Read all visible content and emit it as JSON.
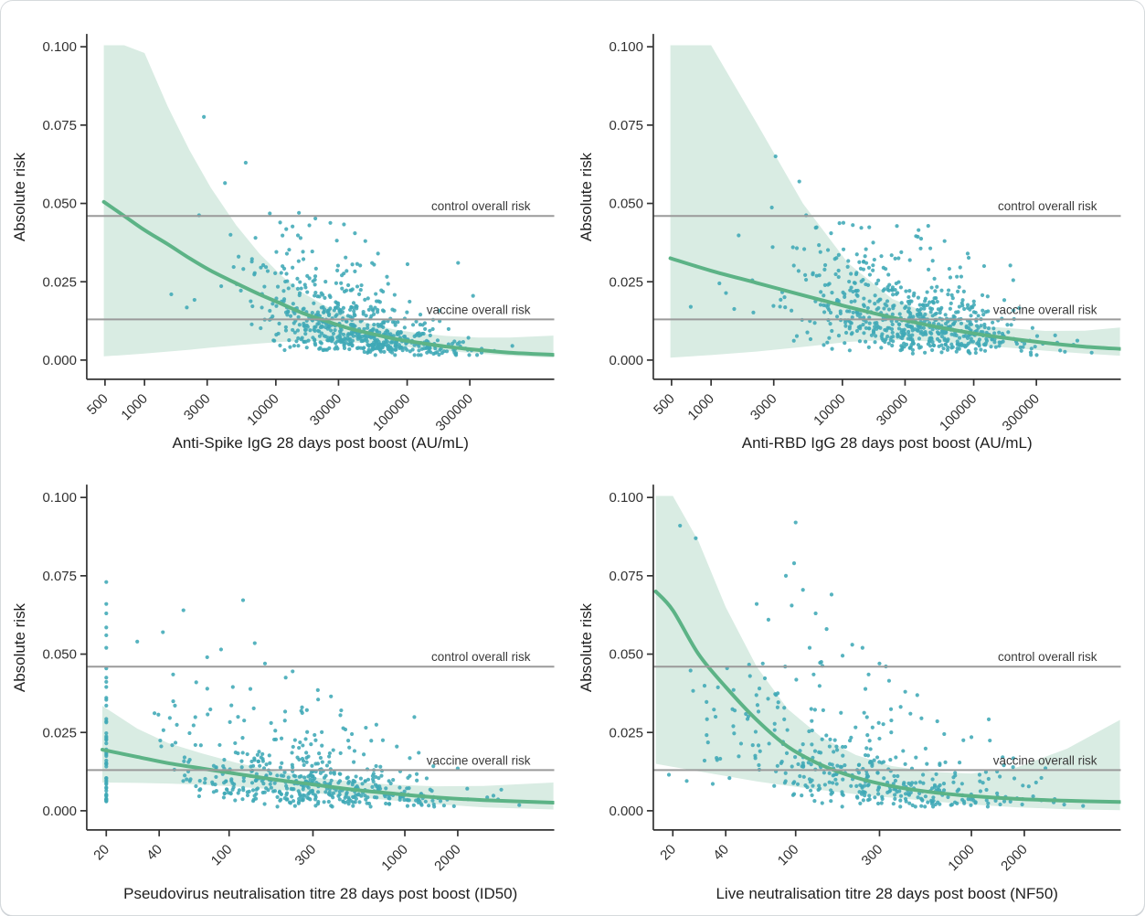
{
  "figure": {
    "ylabel": "Absolute risk",
    "y_ticks": [
      {
        "v": 0.0,
        "label": "0.000"
      },
      {
        "v": 0.025,
        "label": "0.025"
      },
      {
        "v": 0.05,
        "label": "0.050"
      },
      {
        "v": 0.075,
        "label": "0.075"
      },
      {
        "v": 0.1,
        "label": "0.100"
      }
    ],
    "ref_lines": {
      "control": {
        "value": 0.046,
        "label": "control overall risk"
      },
      "vaccine": {
        "value": 0.013,
        "label": "vaccine overall risk"
      }
    },
    "colors": {
      "point": "#3fa8b6",
      "trend": "#5cb386",
      "band": "#d9ece3",
      "ref_line": "#9a9a9a",
      "axis": "#333333",
      "text": "#303030"
    },
    "point_radius": 2.1
  },
  "chart_data": [
    {
      "type": "scatter",
      "xlabel": "Anti-Spike IgG 28 days post boost (AU/mL)",
      "ylabel": "Absolute risk",
      "x_scale": "log10",
      "x_domain_log10": [
        2.56,
        6.12
      ],
      "ylim": [
        0,
        0.1
      ],
      "x_ticks": [
        {
          "v": 500,
          "label": "500"
        },
        {
          "v": 1000,
          "label": "1000"
        },
        {
          "v": 3000,
          "label": "3000"
        },
        {
          "v": 10000,
          "label": "10000"
        },
        {
          "v": 30000,
          "label": "30000"
        },
        {
          "v": 100000,
          "label": "100000"
        },
        {
          "v": 300000,
          "label": "300000"
        }
      ],
      "trend": [
        [
          490,
          0.0505
        ],
        [
          700,
          0.046
        ],
        [
          1000,
          0.0415
        ],
        [
          1500,
          0.037
        ],
        [
          2200,
          0.0325
        ],
        [
          3200,
          0.0285
        ],
        [
          5000,
          0.0245
        ],
        [
          7500,
          0.021
        ],
        [
          11000,
          0.018
        ],
        [
          16000,
          0.015
        ],
        [
          24000,
          0.0125
        ],
        [
          35000,
          0.0103
        ],
        [
          52000,
          0.0085
        ],
        [
          80000,
          0.0068
        ],
        [
          120000,
          0.0056
        ],
        [
          200000,
          0.0043
        ],
        [
          350000,
          0.0032
        ],
        [
          600000,
          0.0024
        ],
        [
          1300000,
          0.0017
        ]
      ],
      "band_upper": [
        [
          490,
          0.15
        ],
        [
          700,
          0.12
        ],
        [
          1000,
          0.098
        ],
        [
          1500,
          0.081
        ],
        [
          2200,
          0.067
        ],
        [
          3200,
          0.055
        ],
        [
          5000,
          0.043
        ],
        [
          7500,
          0.034
        ],
        [
          11000,
          0.027
        ],
        [
          16000,
          0.0215
        ],
        [
          24000,
          0.0172
        ],
        [
          35000,
          0.014
        ],
        [
          52000,
          0.0116
        ],
        [
          80000,
          0.0098
        ],
        [
          120000,
          0.0086
        ],
        [
          200000,
          0.0077
        ],
        [
          350000,
          0.0072
        ],
        [
          600000,
          0.0072
        ],
        [
          1300000,
          0.0078
        ]
      ],
      "band_lower": [
        [
          490,
          0.0012
        ],
        [
          700,
          0.0016
        ],
        [
          1000,
          0.0021
        ],
        [
          1500,
          0.0027
        ],
        [
          2200,
          0.0033
        ],
        [
          3200,
          0.004
        ],
        [
          5000,
          0.0047
        ],
        [
          7500,
          0.0053
        ],
        [
          11000,
          0.0058
        ],
        [
          16000,
          0.0061
        ],
        [
          24000,
          0.0061
        ],
        [
          35000,
          0.0058
        ],
        [
          52000,
          0.0053
        ],
        [
          80000,
          0.0046
        ],
        [
          120000,
          0.0038
        ],
        [
          200000,
          0.0029
        ],
        [
          350000,
          0.0021
        ],
        [
          600000,
          0.0014
        ],
        [
          1300000,
          0.0008
        ]
      ],
      "outliers": [
        [
          2830,
          0.0776
        ],
        [
          5900,
          0.063
        ],
        [
          4100,
          0.0565
        ],
        [
          2600,
          0.0462
        ],
        [
          9000,
          0.0468
        ],
        [
          15000,
          0.047
        ],
        [
          20000,
          0.0452
        ],
        [
          26000,
          0.0438
        ],
        [
          18000,
          0.043
        ],
        [
          12000,
          0.0418
        ],
        [
          33000,
          0.0433
        ],
        [
          40000,
          0.0405
        ],
        [
          1600,
          0.021
        ],
        [
          2100,
          0.0168
        ],
        [
          2400,
          0.0192
        ],
        [
          48000,
          0.038
        ],
        [
          60000,
          0.034
        ],
        [
          7000,
          0.039
        ],
        [
          5200,
          0.033
        ]
      ],
      "cloud": {
        "n": 640,
        "mu_log10x": 4.6,
        "sd_log10x": 0.38,
        "clip_log10x": [
          3.1,
          6.06
        ],
        "y_sigma": 0.6,
        "y_min": 0.0016,
        "y_max": 0.044,
        "seed": 11
      }
    },
    {
      "type": "scatter",
      "xlabel": "Anti-RBD IgG 28 days post boost (AU/mL)",
      "ylabel": "Absolute risk",
      "x_scale": "log10",
      "x_domain_log10": [
        2.56,
        6.12
      ],
      "ylim": [
        0,
        0.1
      ],
      "x_ticks": [
        {
          "v": 500,
          "label": "500"
        },
        {
          "v": 1000,
          "label": "1000"
        },
        {
          "v": 3000,
          "label": "3000"
        },
        {
          "v": 10000,
          "label": "10000"
        },
        {
          "v": 30000,
          "label": "30000"
        },
        {
          "v": 100000,
          "label": "100000"
        },
        {
          "v": 300000,
          "label": "300000"
        }
      ],
      "trend": [
        [
          490,
          0.0325
        ],
        [
          1000,
          0.0285
        ],
        [
          2200,
          0.0247
        ],
        [
          5000,
          0.0207
        ],
        [
          11000,
          0.017
        ],
        [
          24000,
          0.0136
        ],
        [
          52000,
          0.0106
        ],
        [
          120000,
          0.008
        ],
        [
          350000,
          0.0055
        ],
        [
          700000,
          0.0043
        ],
        [
          1300000,
          0.0036
        ]
      ],
      "band_upper": [
        [
          490,
          0.145
        ],
        [
          1000,
          0.104
        ],
        [
          2200,
          0.076
        ],
        [
          5000,
          0.05
        ],
        [
          11000,
          0.031
        ],
        [
          24000,
          0.0195
        ],
        [
          52000,
          0.014
        ],
        [
          120000,
          0.0108
        ],
        [
          350000,
          0.0093
        ],
        [
          700000,
          0.0094
        ],
        [
          1300000,
          0.0104
        ]
      ],
      "band_lower": [
        [
          490,
          0.0008
        ],
        [
          1000,
          0.0016
        ],
        [
          2200,
          0.0027
        ],
        [
          5000,
          0.0042
        ],
        [
          11000,
          0.0058
        ],
        [
          24000,
          0.0065
        ],
        [
          52000,
          0.0059
        ],
        [
          120000,
          0.0046
        ],
        [
          350000,
          0.003
        ],
        [
          700000,
          0.0021
        ],
        [
          1300000,
          0.0014
        ]
      ],
      "outliers": [
        [
          3100,
          0.065
        ],
        [
          4700,
          0.057
        ],
        [
          2900,
          0.0487
        ],
        [
          5300,
          0.0462
        ],
        [
          9500,
          0.0437
        ],
        [
          12000,
          0.0431
        ],
        [
          16000,
          0.0424
        ],
        [
          8200,
          0.0405
        ],
        [
          700,
          0.017
        ],
        [
          1500,
          0.0163
        ],
        [
          2100,
          0.0152
        ],
        [
          26000,
          0.0428
        ],
        [
          38000,
          0.0415
        ],
        [
          90000,
          0.034
        ],
        [
          120000,
          0.03
        ],
        [
          200000,
          0.0255
        ],
        [
          60000,
          0.038
        ],
        [
          4200,
          0.036
        ],
        [
          6800,
          0.0345
        ]
      ],
      "cloud": {
        "n": 660,
        "mu_log10x": 4.55,
        "sd_log10x": 0.43,
        "clip_log10x": [
          2.8,
          6.06
        ],
        "y_sigma": 0.6,
        "y_min": 0.0016,
        "y_max": 0.044,
        "seed": 22
      }
    },
    {
      "type": "scatter",
      "xlabel": "Pseudovirus neutralisation titre 28 days post boost (ID50)",
      "ylabel": "Absolute risk",
      "x_scale": "log10",
      "x_domain_log10": [
        1.19,
        3.85
      ],
      "ylim": [
        0,
        0.1
      ],
      "x_ticks": [
        {
          "v": 20,
          "label": "20"
        },
        {
          "v": 40,
          "label": "40"
        },
        {
          "v": 100,
          "label": "100"
        },
        {
          "v": 300,
          "label": "300"
        },
        {
          "v": 1000,
          "label": "1000"
        },
        {
          "v": 2000,
          "label": "2000"
        }
      ],
      "trend": [
        [
          19,
          0.0195
        ],
        [
          30,
          0.0172
        ],
        [
          45,
          0.0152
        ],
        [
          70,
          0.0135
        ],
        [
          110,
          0.0118
        ],
        [
          180,
          0.01
        ],
        [
          300,
          0.0084
        ],
        [
          500,
          0.0068
        ],
        [
          850,
          0.0055
        ],
        [
          1500,
          0.0043
        ],
        [
          2800,
          0.0034
        ],
        [
          7000,
          0.0026
        ]
      ],
      "band_upper": [
        [
          19,
          0.0335
        ],
        [
          30,
          0.0262
        ],
        [
          45,
          0.0216
        ],
        [
          70,
          0.0183
        ],
        [
          110,
          0.0153
        ],
        [
          180,
          0.0127
        ],
        [
          300,
          0.0107
        ],
        [
          500,
          0.0093
        ],
        [
          850,
          0.0083
        ],
        [
          1500,
          0.0078
        ],
        [
          2800,
          0.0079
        ],
        [
          7000,
          0.009
        ]
      ],
      "band_lower": [
        [
          19,
          0.009
        ],
        [
          30,
          0.0089
        ],
        [
          45,
          0.0087
        ],
        [
          70,
          0.0083
        ],
        [
          110,
          0.0077
        ],
        [
          180,
          0.0068
        ],
        [
          300,
          0.0057
        ],
        [
          500,
          0.0045
        ],
        [
          850,
          0.0033
        ],
        [
          1500,
          0.0021
        ],
        [
          2800,
          0.0011
        ],
        [
          7000,
          0.0004
        ]
      ],
      "outliers": [
        [
          55,
          0.064
        ],
        [
          120,
          0.0672
        ],
        [
          42,
          0.057
        ],
        [
          30,
          0.054
        ],
        [
          90,
          0.0515
        ],
        [
          140,
          0.0535
        ],
        [
          75,
          0.049
        ],
        [
          160,
          0.047
        ],
        [
          230,
          0.0445
        ],
        [
          210,
          0.0425
        ],
        [
          320,
          0.0385
        ],
        [
          380,
          0.0365
        ],
        [
          260,
          0.033
        ],
        [
          430,
          0.0305
        ],
        [
          600,
          0.0265
        ],
        [
          500,
          0.0245
        ],
        [
          750,
          0.0225
        ],
        [
          900,
          0.0205
        ],
        [
          1200,
          0.0185
        ],
        [
          2000,
          0.0135
        ],
        [
          48,
          0.0435
        ],
        [
          65,
          0.041
        ],
        [
          105,
          0.0395
        ]
      ],
      "stripe": {
        "x": 20,
        "n": 46,
        "y_min": 0.003,
        "y_max": 0.047,
        "extra_y": [
          0.052,
          0.056,
          0.0585,
          0.063,
          0.066,
          0.073
        ],
        "seed": 77
      },
      "cloud": {
        "n": 500,
        "mu_log10x": 2.42,
        "sd_log10x": 0.43,
        "clip_log10x": [
          1.56,
          3.8
        ],
        "y_sigma": 0.65,
        "y_min": 0.0013,
        "y_max": 0.04,
        "seed": 33
      }
    },
    {
      "type": "scatter",
      "xlabel": "Live neutralisation titre 28 days post boost (NF50)",
      "ylabel": "Absolute risk",
      "x_scale": "log10",
      "x_domain_log10": [
        1.19,
        3.85
      ],
      "ylim": [
        0,
        0.1
      ],
      "x_ticks": [
        {
          "v": 20,
          "label": "20"
        },
        {
          "v": 40,
          "label": "40"
        },
        {
          "v": 100,
          "label": "100"
        },
        {
          "v": 300,
          "label": "300"
        },
        {
          "v": 1000,
          "label": "1000"
        },
        {
          "v": 2000,
          "label": "2000"
        }
      ],
      "trend": [
        [
          16,
          0.07
        ],
        [
          20,
          0.064
        ],
        [
          28,
          0.05
        ],
        [
          40,
          0.0395
        ],
        [
          60,
          0.029
        ],
        [
          90,
          0.0205
        ],
        [
          140,
          0.0146
        ],
        [
          220,
          0.0106
        ],
        [
          350,
          0.0079
        ],
        [
          600,
          0.0059
        ],
        [
          1000,
          0.0047
        ],
        [
          1800,
          0.0038
        ],
        [
          3500,
          0.0032
        ],
        [
          7000,
          0.0028
        ]
      ],
      "band_upper": [
        [
          16,
          0.16
        ],
        [
          20,
          0.118
        ],
        [
          28,
          0.086
        ],
        [
          40,
          0.065
        ],
        [
          60,
          0.046
        ],
        [
          90,
          0.0325
        ],
        [
          140,
          0.0235
        ],
        [
          220,
          0.0178
        ],
        [
          350,
          0.0143
        ],
        [
          600,
          0.0124
        ],
        [
          1000,
          0.0119
        ],
        [
          1800,
          0.0138
        ],
        [
          3500,
          0.0198
        ],
        [
          7000,
          0.029
        ]
      ],
      "band_lower": [
        [
          16,
          0.015
        ],
        [
          20,
          0.014
        ],
        [
          28,
          0.0126
        ],
        [
          40,
          0.0111
        ],
        [
          60,
          0.0094
        ],
        [
          90,
          0.008
        ],
        [
          140,
          0.0066
        ],
        [
          220,
          0.0053
        ],
        [
          350,
          0.0042
        ],
        [
          600,
          0.003
        ],
        [
          1000,
          0.002
        ],
        [
          1800,
          0.0011
        ],
        [
          3500,
          0.0005
        ],
        [
          7000,
          0.0002
        ]
      ],
      "outliers": [
        [
          22,
          0.091
        ],
        [
          27,
          0.087
        ],
        [
          100,
          0.092
        ],
        [
          98,
          0.079
        ],
        [
          88,
          0.075
        ],
        [
          110,
          0.0705
        ],
        [
          160,
          0.069
        ],
        [
          95,
          0.0655
        ],
        [
          60,
          0.066
        ],
        [
          130,
          0.063
        ],
        [
          70,
          0.061
        ],
        [
          150,
          0.058
        ],
        [
          210,
          0.053
        ],
        [
          240,
          0.052
        ],
        [
          185,
          0.0495
        ],
        [
          300,
          0.047
        ],
        [
          260,
          0.0435
        ],
        [
          340,
          0.0415
        ],
        [
          450,
          0.031
        ],
        [
          520,
          0.0295
        ],
        [
          700,
          0.0245
        ],
        [
          1000,
          0.0235
        ],
        [
          900,
          0.0225
        ],
        [
          1400,
          0.0125
        ],
        [
          2500,
          0.0105
        ],
        [
          19,
          0.0115
        ],
        [
          24,
          0.0095
        ],
        [
          35,
          0.03
        ],
        [
          45,
          0.032
        ],
        [
          55,
          0.043
        ],
        [
          65,
          0.047
        ],
        [
          120,
          0.052
        ],
        [
          140,
          0.0475
        ],
        [
          420,
          0.038
        ]
      ],
      "cloud": {
        "n": 390,
        "mu_log10x": 2.38,
        "sd_log10x": 0.46,
        "clip_log10x": [
          1.27,
          3.8
        ],
        "y_sigma": 0.7,
        "y_min": 0.0013,
        "y_max": 0.048,
        "seed": 44
      }
    }
  ]
}
